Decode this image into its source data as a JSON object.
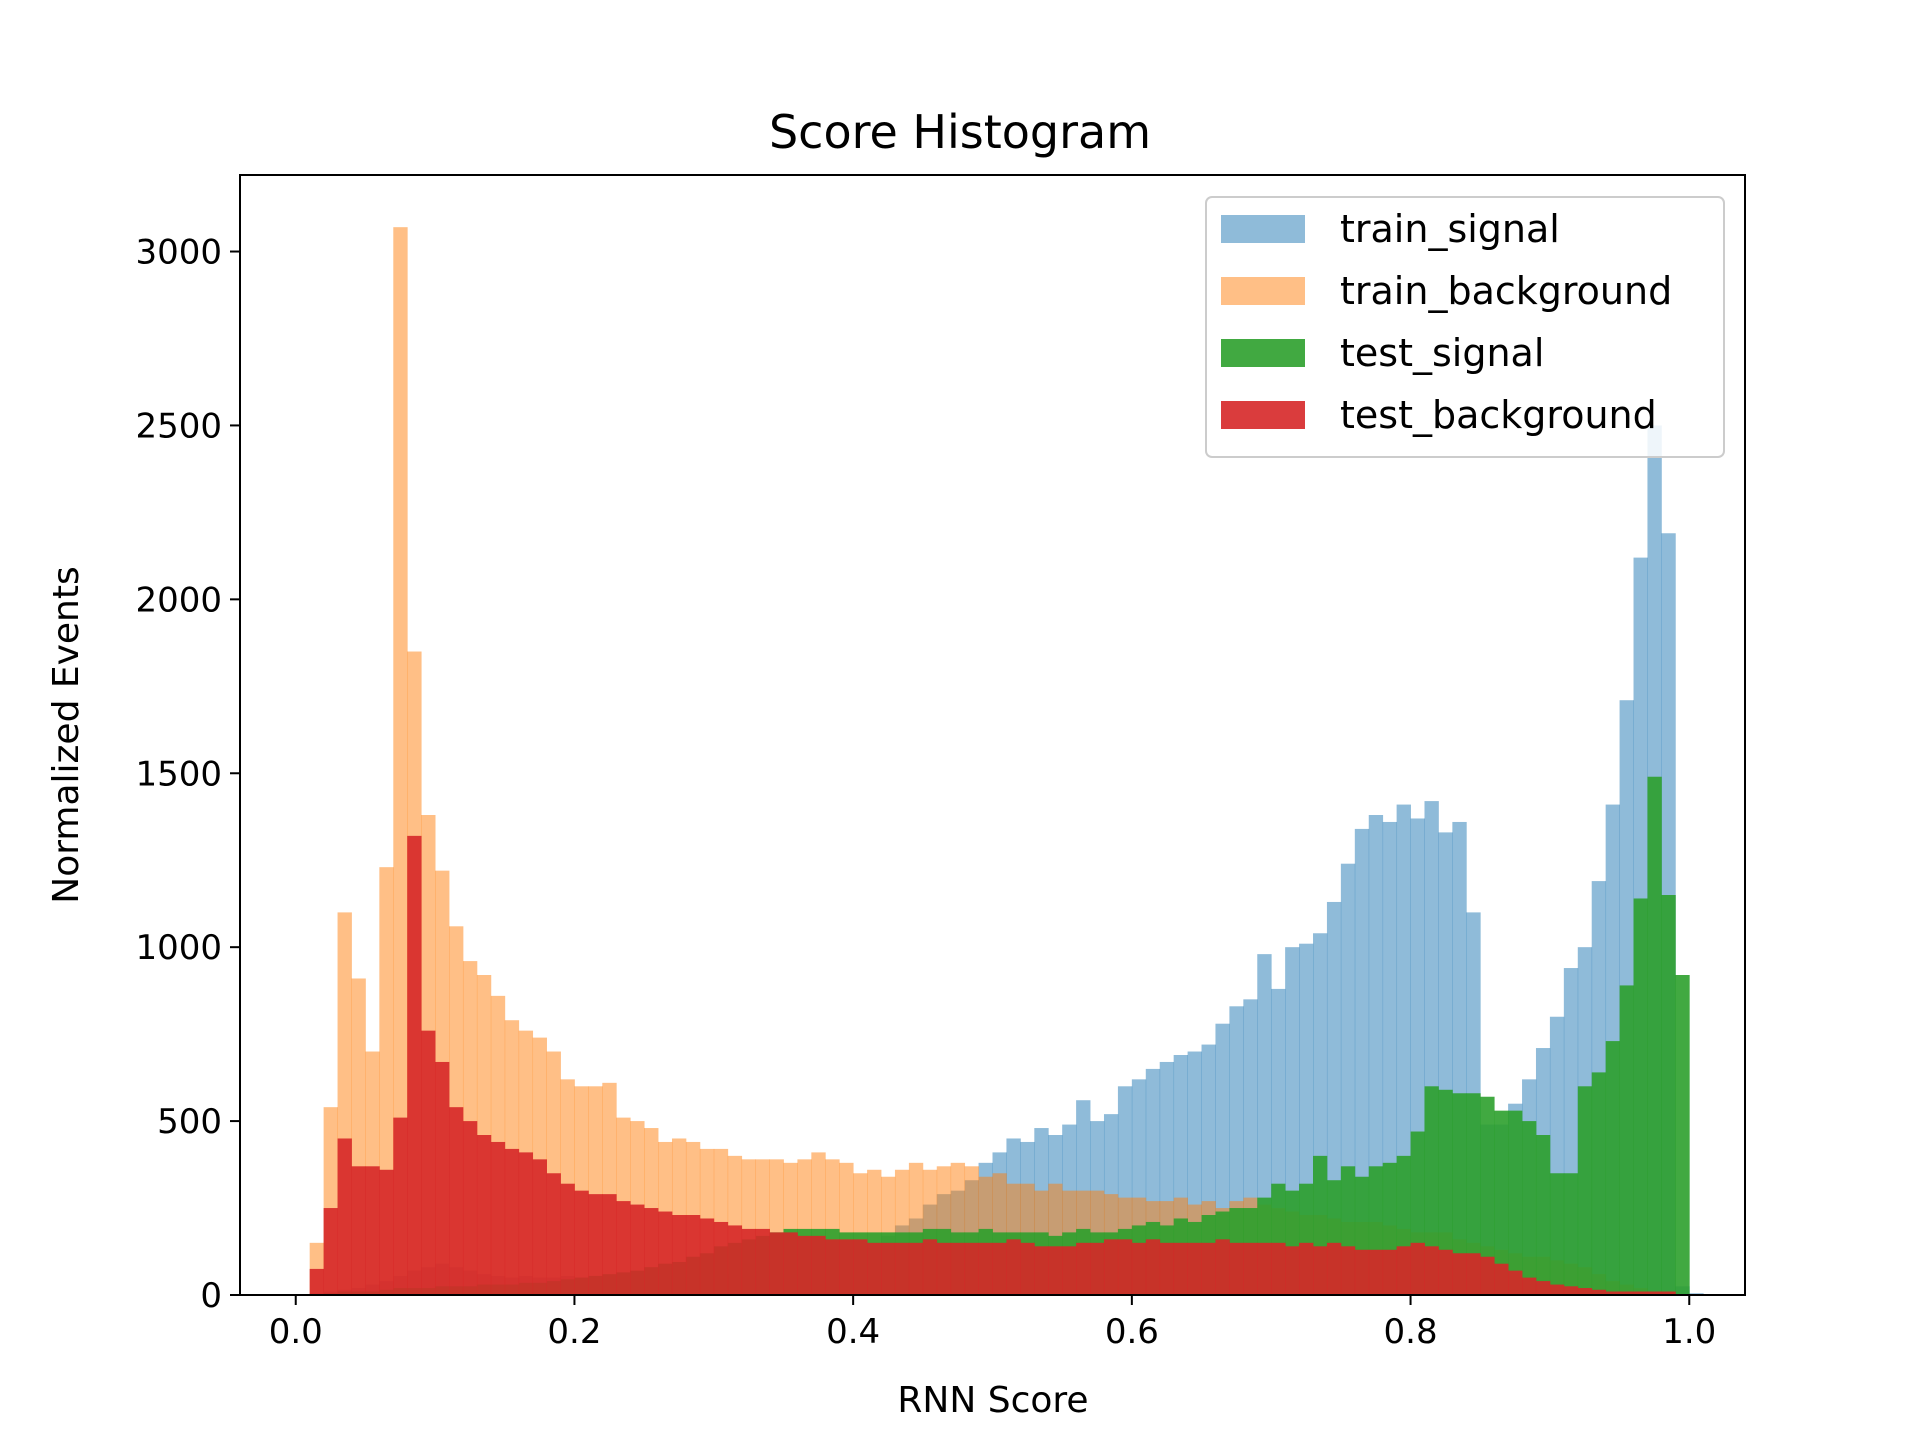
{
  "chart_data": {
    "type": "bar",
    "title": "Score Histogram",
    "xlabel": "RNN Score",
    "ylabel": "Normalized Events",
    "xlim": [
      -0.04,
      1.04
    ],
    "ylim": [
      0,
      3220
    ],
    "xticks": [
      0.0,
      0.2,
      0.4,
      0.6,
      0.8,
      1.0
    ],
    "xtick_labels": [
      "0.0",
      "0.2",
      "0.4",
      "0.6",
      "0.8",
      "1.0"
    ],
    "yticks": [
      0,
      500,
      1000,
      1500,
      2000,
      2500,
      3000
    ],
    "ytick_labels": [
      "0",
      "500",
      "1000",
      "1500",
      "2000",
      "2500",
      "3000"
    ],
    "grid": false,
    "legend_position": "top-right",
    "bin_start": 0.0,
    "bin_width": 0.01,
    "series": [
      {
        "name": "train_signal",
        "color": "#1f77b4",
        "opacity": 0.5,
        "values": [
          0,
          5,
          10,
          15,
          20,
          30,
          40,
          55,
          70,
          80,
          90,
          80,
          70,
          60,
          55,
          50,
          55,
          50,
          50,
          55,
          50,
          52,
          55,
          50,
          50,
          55,
          55,
          50,
          55,
          60,
          60,
          60,
          70,
          70,
          75,
          80,
          80,
          80,
          90,
          110,
          120,
          150,
          170,
          200,
          220,
          260,
          290,
          300,
          330,
          380,
          410,
          450,
          440,
          480,
          460,
          490,
          560,
          500,
          520,
          600,
          620,
          650,
          670,
          690,
          700,
          720,
          780,
          830,
          850,
          980,
          880,
          1000,
          1010,
          1040,
          1130,
          1240,
          1340,
          1380,
          1360,
          1410,
          1370,
          1420,
          1330,
          1360,
          1100,
          490,
          490,
          550,
          620,
          710,
          800,
          940,
          1000,
          1190,
          1410,
          1710,
          2120,
          2500,
          2190,
          25,
          5,
          0
        ]
      },
      {
        "name": "train_background",
        "color": "#ff7f0e",
        "opacity": 0.5,
        "values": [
          0,
          150,
          540,
          1100,
          910,
          700,
          1230,
          3070,
          1850,
          1380,
          1220,
          1060,
          960,
          920,
          860,
          790,
          760,
          740,
          700,
          620,
          600,
          600,
          610,
          510,
          500,
          480,
          440,
          450,
          440,
          420,
          420,
          400,
          390,
          390,
          390,
          380,
          390,
          410,
          390,
          380,
          350,
          360,
          340,
          360,
          380,
          360,
          370,
          380,
          370,
          340,
          350,
          320,
          320,
          300,
          320,
          300,
          300,
          300,
          290,
          280,
          280,
          270,
          270,
          280,
          260,
          270,
          250,
          270,
          280,
          260,
          250,
          240,
          230,
          230,
          220,
          210,
          210,
          210,
          200,
          190,
          180,
          180,
          180,
          160,
          150,
          140,
          130,
          120,
          110,
          110,
          100,
          90,
          80,
          60,
          40,
          30,
          20,
          10,
          0,
          0,
          0,
          0
        ]
      },
      {
        "name": "test_signal",
        "color": "#2ca02c",
        "opacity": 0.9,
        "values": [
          0,
          0,
          5,
          10,
          10,
          10,
          15,
          20,
          20,
          20,
          25,
          25,
          25,
          30,
          30,
          30,
          35,
          35,
          40,
          45,
          50,
          55,
          60,
          65,
          70,
          80,
          90,
          95,
          110,
          120,
          140,
          150,
          160,
          170,
          180,
          190,
          190,
          190,
          190,
          180,
          180,
          180,
          180,
          180,
          180,
          190,
          190,
          180,
          180,
          190,
          180,
          180,
          180,
          180,
          170,
          180,
          190,
          180,
          180,
          190,
          200,
          210,
          200,
          220,
          210,
          230,
          240,
          250,
          250,
          280,
          320,
          300,
          320,
          400,
          330,
          370,
          340,
          370,
          380,
          400,
          470,
          600,
          590,
          580,
          580,
          570,
          530,
          530,
          500,
          460,
          350,
          350,
          600,
          640,
          730,
          890,
          1140,
          1490,
          1150,
          920,
          0,
          0
        ]
      },
      {
        "name": "test_background",
        "color": "#d62728",
        "opacity": 0.9,
        "values": [
          0,
          75,
          250,
          450,
          370,
          370,
          360,
          510,
          1320,
          760,
          670,
          540,
          500,
          460,
          440,
          420,
          410,
          390,
          350,
          320,
          300,
          290,
          290,
          270,
          260,
          250,
          240,
          230,
          230,
          220,
          210,
          200,
          190,
          190,
          180,
          180,
          170,
          170,
          160,
          160,
          160,
          150,
          150,
          150,
          150,
          160,
          150,
          150,
          150,
          150,
          150,
          160,
          150,
          140,
          140,
          140,
          150,
          150,
          160,
          160,
          150,
          160,
          150,
          150,
          150,
          150,
          160,
          150,
          150,
          150,
          150,
          140,
          150,
          140,
          150,
          140,
          130,
          130,
          130,
          140,
          150,
          140,
          130,
          120,
          120,
          110,
          90,
          70,
          50,
          40,
          30,
          25,
          20,
          15,
          10,
          10,
          10,
          10,
          10,
          0,
          0,
          0
        ]
      }
    ]
  }
}
